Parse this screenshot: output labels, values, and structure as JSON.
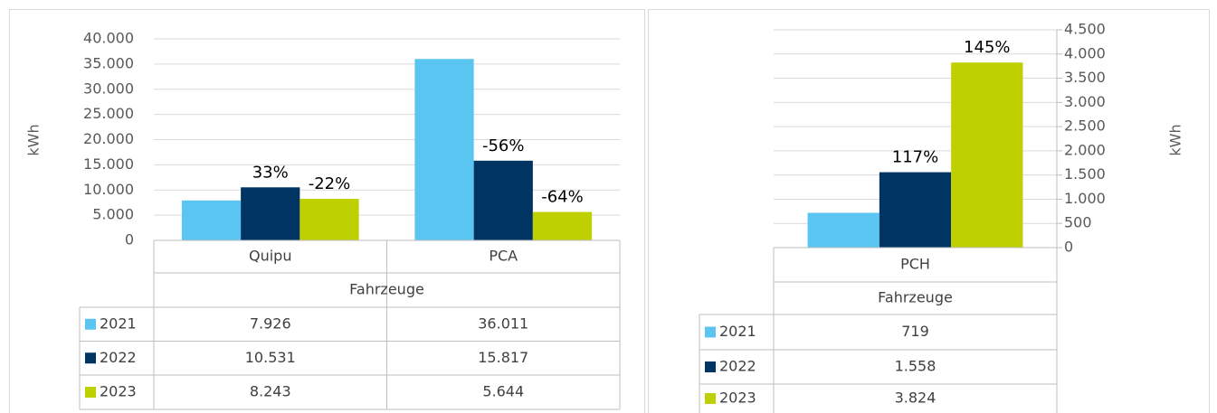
{
  "chart_data": [
    {
      "type": "bar",
      "y_axis_label": "kWh",
      "y_axis_position": "left",
      "group_label": "Fahrzeuge",
      "grid": true,
      "categories": [
        "Quipu",
        "PCA"
      ],
      "ylim": [
        0,
        40000
      ],
      "yticks": [
        0,
        {
          "value": 5000,
          "label": "5.000"
        },
        {
          "value": 10000,
          "label": "10.000"
        },
        {
          "value": 15000,
          "label": "15.000"
        },
        {
          "value": 20000,
          "label": "20.000"
        },
        {
          "value": 25000,
          "label": "25.000"
        },
        {
          "value": 30000,
          "label": "30.000"
        },
        {
          "value": 35000,
          "label": "35.000"
        },
        {
          "value": 40000,
          "label": "40.000"
        }
      ],
      "series": [
        {
          "name": "2021",
          "color": "#5bc5f2",
          "values": [
            7926,
            36011
          ],
          "value_labels": [
            "7.926",
            "36.011"
          ]
        },
        {
          "name": "2022",
          "color": "#003462",
          "values": [
            10531,
            15817
          ],
          "value_labels": [
            "10.531",
            "15.817"
          ],
          "change_labels": [
            "33%",
            "-56%"
          ]
        },
        {
          "name": "2023",
          "color": "#bed000",
          "values": [
            8243,
            5644
          ],
          "value_labels": [
            "8.243",
            "5.644"
          ],
          "change_labels": [
            "-22%",
            "-64%"
          ]
        }
      ]
    },
    {
      "type": "bar",
      "y_axis_label": "kWh",
      "y_axis_position": "right",
      "group_label": "Fahrzeuge",
      "grid": true,
      "categories": [
        "PCH"
      ],
      "ylim": [
        0,
        4500
      ],
      "yticks": [
        0,
        500,
        {
          "value": 1000,
          "label": "1.000"
        },
        {
          "value": 1500,
          "label": "1.500"
        },
        {
          "value": 2000,
          "label": "2.000"
        },
        {
          "value": 2500,
          "label": "2.500"
        },
        {
          "value": 3000,
          "label": "3.000"
        },
        {
          "value": 3500,
          "label": "3.500"
        },
        {
          "value": 4000,
          "label": "4.000"
        },
        {
          "value": 4500,
          "label": "4.500"
        }
      ],
      "series": [
        {
          "name": "2021",
          "color": "#5bc5f2",
          "values": [
            719
          ],
          "value_labels": [
            "719"
          ]
        },
        {
          "name": "2022",
          "color": "#003462",
          "values": [
            1558
          ],
          "value_labels": [
            "1.558"
          ],
          "change_labels": [
            "117%"
          ]
        },
        {
          "name": "2023",
          "color": "#bed000",
          "values": [
            3824
          ],
          "value_labels": [
            "3.824"
          ],
          "change_labels": [
            "145%"
          ]
        }
      ]
    }
  ]
}
